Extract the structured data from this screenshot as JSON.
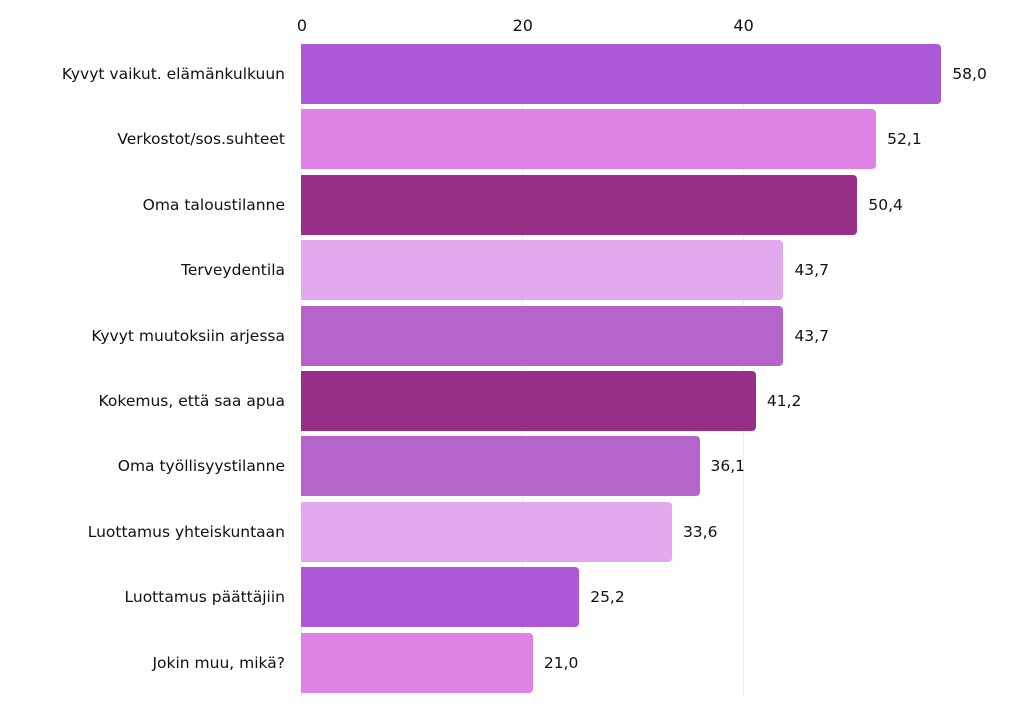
{
  "chart_data": {
    "type": "bar",
    "orientation": "horizontal",
    "title": "",
    "xlabel": "",
    "ylabel": "",
    "xlim": [
      0,
      58
    ],
    "x_ticks": [
      "0",
      "20",
      "40"
    ],
    "grid": true,
    "legend": null,
    "categories": [
      "Kyvyt vaikut. elämänkulkuun",
      "Verkostot/sos.suhteet",
      "Oma taloustilanne",
      "Terveydentila",
      "Kyvyt muutoksiin arjessa",
      "Kokemus, että saa apua",
      "Oma työllisyystilanne",
      "Luottamus yhteiskuntaan",
      "Luottamus päättäjiin",
      "Jokin muu, mikä?"
    ],
    "values": [
      58.0,
      52.1,
      50.4,
      43.7,
      43.7,
      41.2,
      36.1,
      33.6,
      25.2,
      21.0
    ],
    "value_labels": [
      "58,0",
      "52,1",
      "50,4",
      "43,7",
      "43,7",
      "41,2",
      "36,1",
      "33,6",
      "25,2",
      "21,0"
    ],
    "colors": [
      "#ad58d8",
      "#de82e6",
      "#972e88",
      "#e2a9ef",
      "#b565c9",
      "#972e88",
      "#b565c9",
      "#e2a9ef",
      "#ad58d8",
      "#de82e6"
    ]
  },
  "axis": {
    "ticks": [
      {
        "label": "0",
        "value": 0
      },
      {
        "label": "20",
        "value": 20
      },
      {
        "label": "40",
        "value": 40
      }
    ]
  },
  "rows": [
    {
      "label": "Kyvyt vaikut. elämänkulkuun",
      "value": "58,0"
    },
    {
      "label": "Verkostot/sos.suhteet",
      "value": "52,1"
    },
    {
      "label": "Oma taloustilanne",
      "value": "50,4"
    },
    {
      "label": "Terveydentila",
      "value": "43,7"
    },
    {
      "label": "Kyvyt muutoksiin arjessa",
      "value": "43,7"
    },
    {
      "label": "Kokemus, että saa apua",
      "value": "41,2"
    },
    {
      "label": "Oma työllisyystilanne",
      "value": "36,1"
    },
    {
      "label": "Luottamus yhteiskuntaan",
      "value": "33,6"
    },
    {
      "label": "Luottamus päättäjiin",
      "value": "25,2"
    },
    {
      "label": "Jokin muu, mikä?",
      "value": "21,0"
    }
  ]
}
